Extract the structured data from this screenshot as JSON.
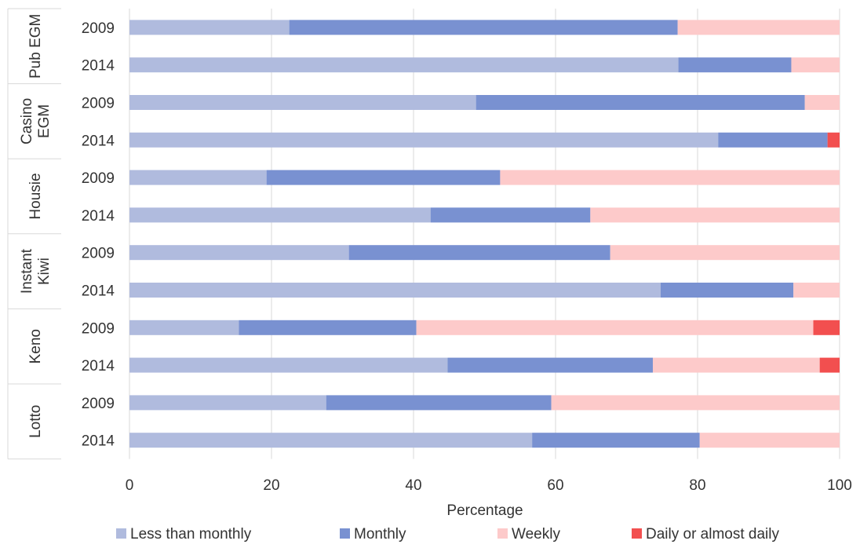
{
  "chart_data": {
    "type": "bar",
    "orientation": "horizontal",
    "stacked": true,
    "xlabel": "Percentage",
    "xlim": [
      0,
      100
    ],
    "xticks": [
      0,
      20,
      40,
      60,
      80,
      100
    ],
    "grid": "vertical",
    "legend_position": "bottom",
    "groups": [
      {
        "label": [
          "Pub EGM"
        ],
        "rows": [
          {
            "year": "2009",
            "values": [
              22.5,
              54.7,
              22.8,
              0
            ]
          },
          {
            "year": "2014",
            "values": [
              77.3,
              15.9,
              6.8,
              0
            ]
          }
        ]
      },
      {
        "label": [
          "Casino",
          "EGM"
        ],
        "rows": [
          {
            "year": "2009",
            "values": [
              48.8,
              46.3,
              4.9,
              0
            ]
          },
          {
            "year": "2014",
            "values": [
              82.9,
              15.4,
              0,
              1.7
            ]
          }
        ]
      },
      {
        "label": [
          "Housie"
        ],
        "rows": [
          {
            "year": "2009",
            "values": [
              19.3,
              32.9,
              47.8,
              0
            ]
          },
          {
            "year": "2014",
            "values": [
              42.4,
              22.5,
              35.1,
              0
            ]
          }
        ]
      },
      {
        "label": [
          "Instant",
          "Kiwi"
        ],
        "rows": [
          {
            "year": "2009",
            "values": [
              30.9,
              36.8,
              32.3,
              0
            ]
          },
          {
            "year": "2014",
            "values": [
              74.8,
              18.7,
              6.5,
              0
            ]
          }
        ]
      },
      {
        "label": [
          "Keno"
        ],
        "rows": [
          {
            "year": "2009",
            "values": [
              15.4,
              25.0,
              55.9,
              3.7
            ]
          },
          {
            "year": "2014",
            "values": [
              44.8,
              28.9,
              23.5,
              2.8
            ]
          }
        ]
      },
      {
        "label": [
          "Lotto"
        ],
        "rows": [
          {
            "year": "2009",
            "values": [
              27.7,
              31.7,
              40.6,
              0
            ]
          },
          {
            "year": "2014",
            "values": [
              56.7,
              23.6,
              19.7,
              0
            ]
          }
        ]
      }
    ],
    "series": [
      {
        "name": "Less than monthly",
        "color": "#b0bbde"
      },
      {
        "name": "Monthly",
        "color": "#7991d1"
      },
      {
        "name": "Weekly",
        "color": "#fdcaca"
      },
      {
        "name": "Daily or almost daily",
        "color": "#f24f4f"
      }
    ]
  }
}
